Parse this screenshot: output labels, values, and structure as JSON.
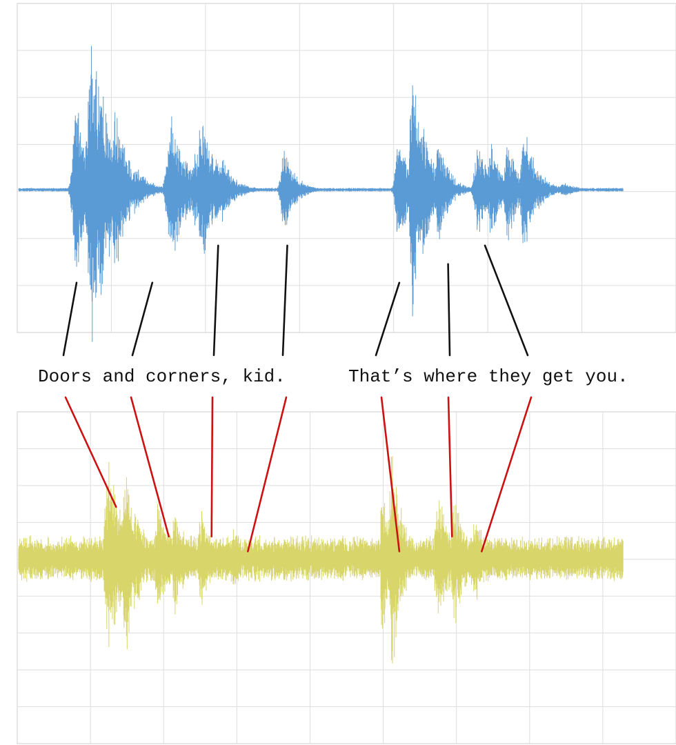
{
  "caption": {
    "phrase_1": "Doors and corners, kid.",
    "phrase_2": "That’s where they get you."
  },
  "colors": {
    "background": "#ffffff",
    "grid": "#dddddd",
    "clean_waveform": "#5b9bd5",
    "noisy_waveform": "#d8d56a",
    "clean_connector": "#111111",
    "noisy_connector": "#cc1111",
    "text": "#111111"
  },
  "panels": [
    {
      "name": "clean-waveform-panel",
      "color_key": "clean_waveform",
      "connector_color_key": "clean_connector",
      "noise_level": 0.012,
      "bursts": [
        {
          "t": 0.09,
          "w": 0.012,
          "a": 0.55
        },
        {
          "t": 0.115,
          "w": 0.018,
          "a": 1.0
        },
        {
          "t": 0.15,
          "w": 0.014,
          "a": 0.55
        },
        {
          "t": 0.235,
          "w": 0.016,
          "a": 0.44
        },
        {
          "t": 0.27,
          "w": 0.012,
          "a": 0.28
        },
        {
          "t": 0.28,
          "w": 0.014,
          "a": 0.52
        },
        {
          "t": 0.31,
          "w": 0.012,
          "a": 0.22
        },
        {
          "t": 0.405,
          "w": 0.01,
          "a": 0.32
        },
        {
          "t": 0.58,
          "w": 0.012,
          "a": 0.36
        },
        {
          "t": 0.6,
          "w": 0.008,
          "a": 0.85
        },
        {
          "t": 0.615,
          "w": 0.01,
          "a": 0.5
        },
        {
          "t": 0.64,
          "w": 0.01,
          "a": 0.35
        },
        {
          "t": 0.7,
          "w": 0.012,
          "a": 0.3
        },
        {
          "t": 0.72,
          "w": 0.01,
          "a": 0.32
        },
        {
          "t": 0.745,
          "w": 0.01,
          "a": 0.36
        },
        {
          "t": 0.77,
          "w": 0.012,
          "a": 0.4
        },
        {
          "t": 0.83,
          "w": 0.012,
          "a": 0.05
        }
      ],
      "connectors": [
        {
          "word": 1,
          "t": 0.09,
          "amp": -0.55
        },
        {
          "word": 2,
          "t": 0.205,
          "amp": -0.55
        },
        {
          "word": 3,
          "t": 0.305,
          "amp": -0.33
        },
        {
          "word": 4,
          "t": 0.41,
          "amp": -0.33
        },
        {
          "word": 5,
          "t": 0.58,
          "amp": -0.55
        },
        {
          "word": 6,
          "t": 0.654,
          "amp": -0.44
        },
        {
          "word": 7,
          "t": 0.71,
          "amp": -0.33
        }
      ]
    },
    {
      "name": "noisy-waveform-panel",
      "color_key": "noisy_waveform",
      "connector_color_key": "noisy_connector",
      "noise_level": 0.16,
      "bursts": [
        {
          "t": 0.14,
          "w": 0.014,
          "a": 0.75
        },
        {
          "t": 0.165,
          "w": 0.014,
          "a": 0.7
        },
        {
          "t": 0.215,
          "w": 0.012,
          "a": 0.42
        },
        {
          "t": 0.24,
          "w": 0.012,
          "a": 0.4
        },
        {
          "t": 0.28,
          "w": 0.012,
          "a": 0.35
        },
        {
          "t": 0.33,
          "w": 0.01,
          "a": 0.25
        },
        {
          "t": 0.555,
          "w": 0.008,
          "a": 0.6
        },
        {
          "t": 0.57,
          "w": 0.01,
          "a": 0.85
        },
        {
          "t": 0.64,
          "w": 0.012,
          "a": 0.5
        },
        {
          "t": 0.665,
          "w": 0.012,
          "a": 0.48
        },
        {
          "t": 0.695,
          "w": 0.012,
          "a": 0.38
        },
        {
          "t": 0.73,
          "w": 0.01,
          "a": 0.2
        }
      ],
      "connectors": [
        {
          "word": 1,
          "t": 0.15,
          "amp": 0.35
        },
        {
          "word": 2,
          "t": 0.23,
          "amp": 0.15
        },
        {
          "word": 3,
          "t": 0.295,
          "amp": 0.15
        },
        {
          "word": 4,
          "t": 0.35,
          "amp": 0.05
        },
        {
          "word": 5,
          "t": 0.58,
          "amp": 0.05
        },
        {
          "word": 6,
          "t": 0.66,
          "amp": 0.15
        },
        {
          "word": 7,
          "t": 0.705,
          "amp": 0.05
        }
      ]
    }
  ]
}
